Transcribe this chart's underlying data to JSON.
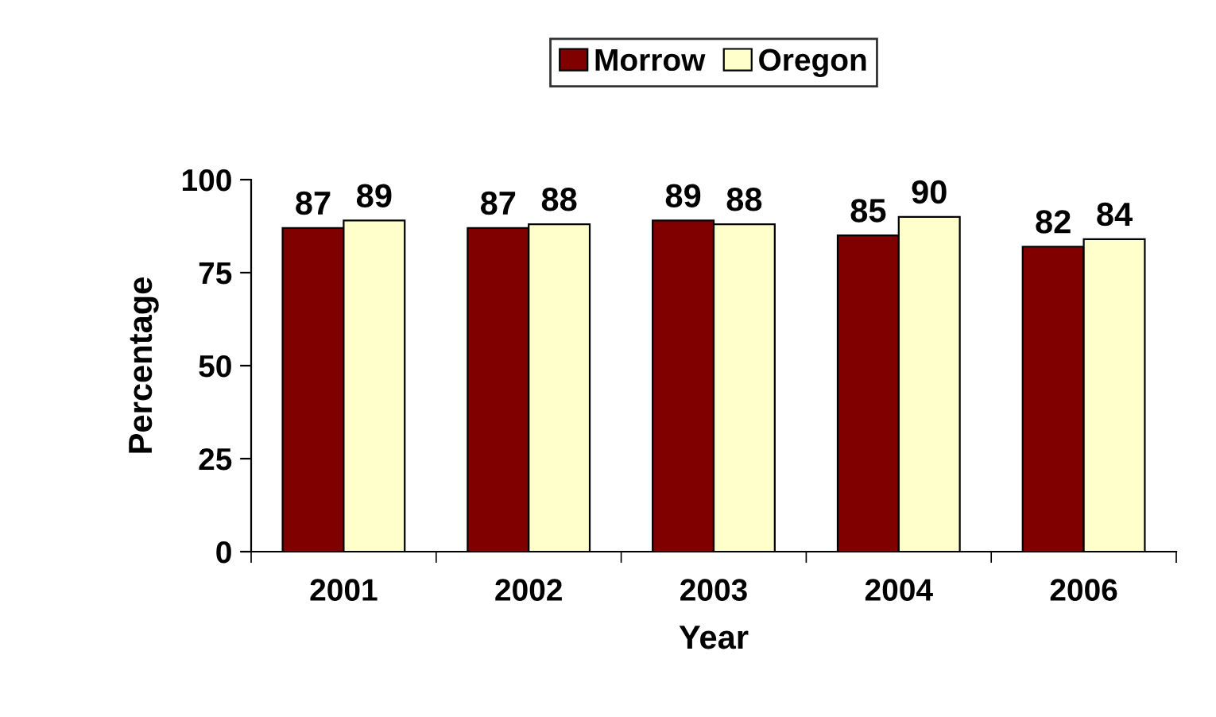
{
  "chart_data": {
    "type": "bar",
    "xlabel": "Year",
    "ylabel": "Percentage",
    "categories": [
      "2001",
      "2002",
      "2003",
      "2004",
      "2006"
    ],
    "series": [
      {
        "name": "Morrow",
        "color": "#800000",
        "values": [
          87,
          87,
          89,
          85,
          82
        ]
      },
      {
        "name": "Oregon",
        "color": "#ffffcc",
        "values": [
          89,
          88,
          88,
          90,
          84
        ]
      }
    ],
    "ylim": [
      0,
      100
    ],
    "yticks": [
      0,
      25,
      50,
      75,
      100
    ],
    "data_labels": true,
    "legend": "top",
    "grid": false
  }
}
